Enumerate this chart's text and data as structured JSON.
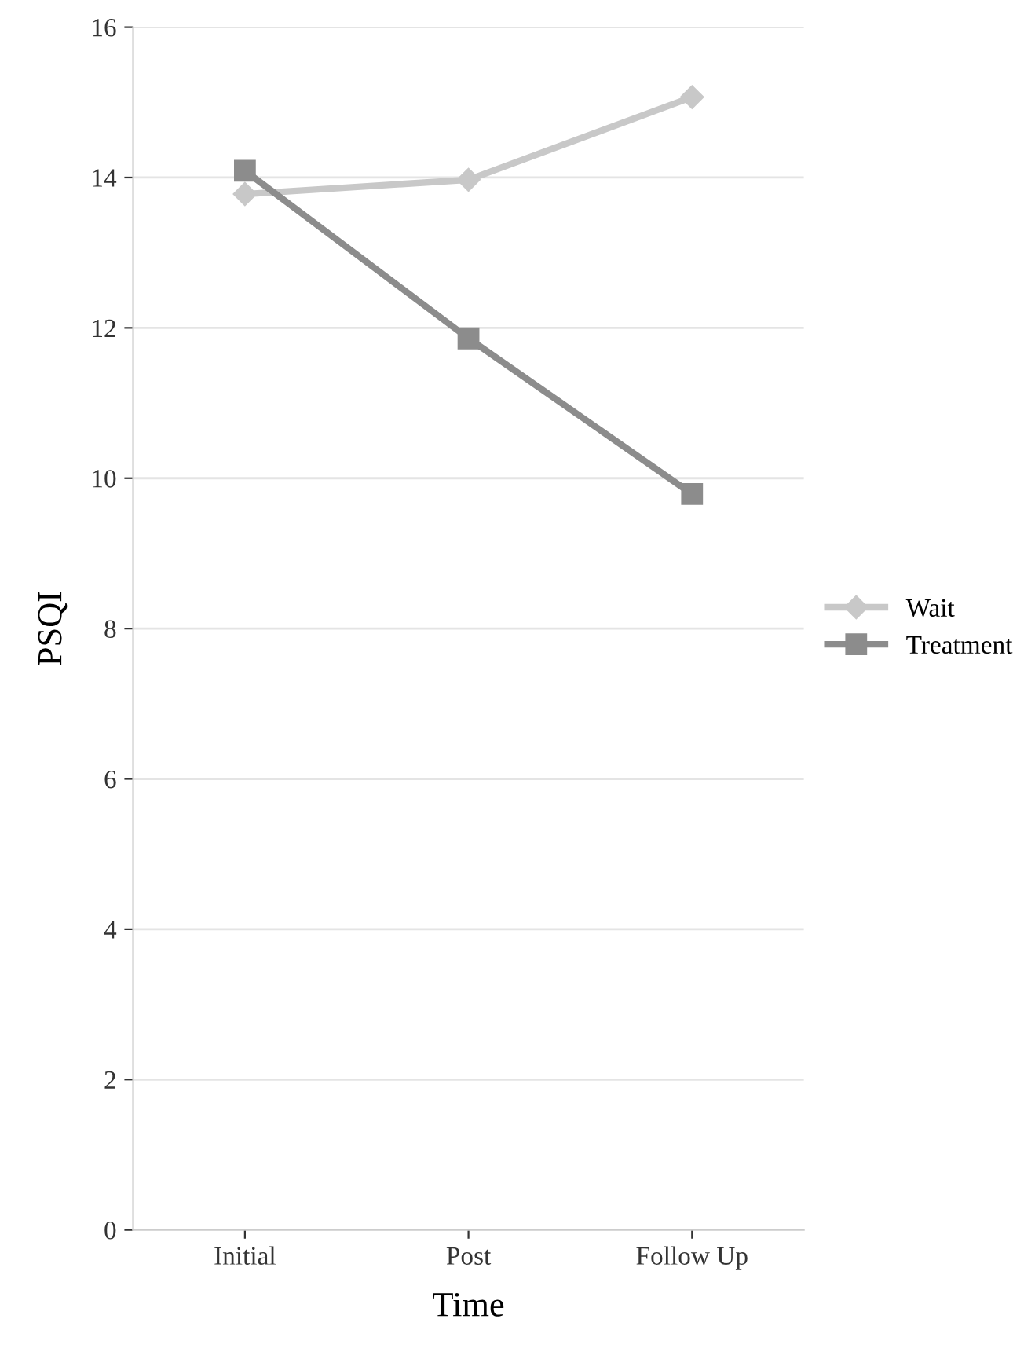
{
  "chart_data": {
    "type": "line",
    "xlabel": "Time",
    "ylabel": "PSQI",
    "categories": [
      "Initial",
      "Post",
      "Follow Up"
    ],
    "series": [
      {
        "name": "Wait",
        "color": "#c8c8c8",
        "marker": "diamond",
        "values": [
          13.78,
          13.97,
          15.07
        ]
      },
      {
        "name": "Treatment",
        "color": "#8c8c8c",
        "marker": "square",
        "values": [
          14.09,
          11.86,
          9.79
        ]
      }
    ],
    "ylim": [
      0,
      16
    ],
    "yticks": [
      0,
      2,
      4,
      6,
      8,
      10,
      12,
      14,
      16
    ],
    "grid": "y",
    "legend": "right"
  }
}
